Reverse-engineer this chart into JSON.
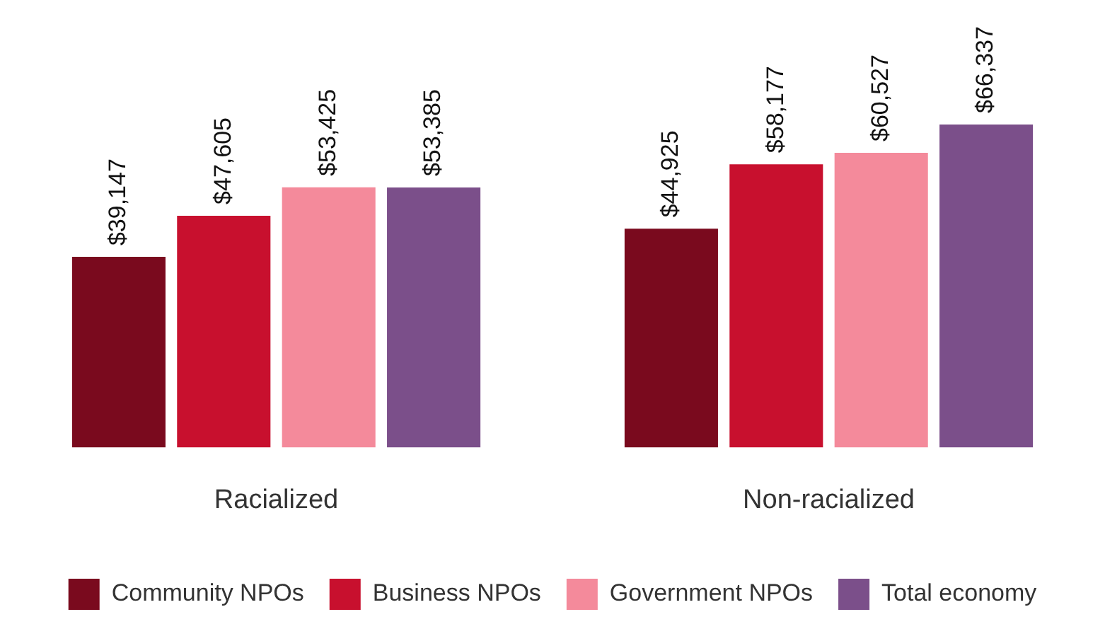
{
  "chart_data": {
    "type": "bar",
    "categories": [
      "Racialized",
      "Non-racialized"
    ],
    "series": [
      {
        "name": "Community NPOs",
        "color": "#7a0a1e",
        "values": [
          39147,
          44925
        ],
        "value_labels": [
          "$39,147",
          "$44,925"
        ]
      },
      {
        "name": "Business NPOs",
        "color": "#c8102e",
        "values": [
          47605,
          58177
        ],
        "value_labels": [
          "$47,605",
          "$58,177"
        ]
      },
      {
        "name": "Government NPOs",
        "color": "#f48a9b",
        "values": [
          53425,
          60527
        ],
        "value_labels": [
          "$53,425",
          "$60,527"
        ]
      },
      {
        "name": "Total economy",
        "color": "#7b4f8a",
        "values": [
          53385,
          66337
        ],
        "value_labels": [
          "$53,385",
          "$66,337"
        ]
      }
    ],
    "legend": "bottom",
    "tick_labels": "x"
  }
}
